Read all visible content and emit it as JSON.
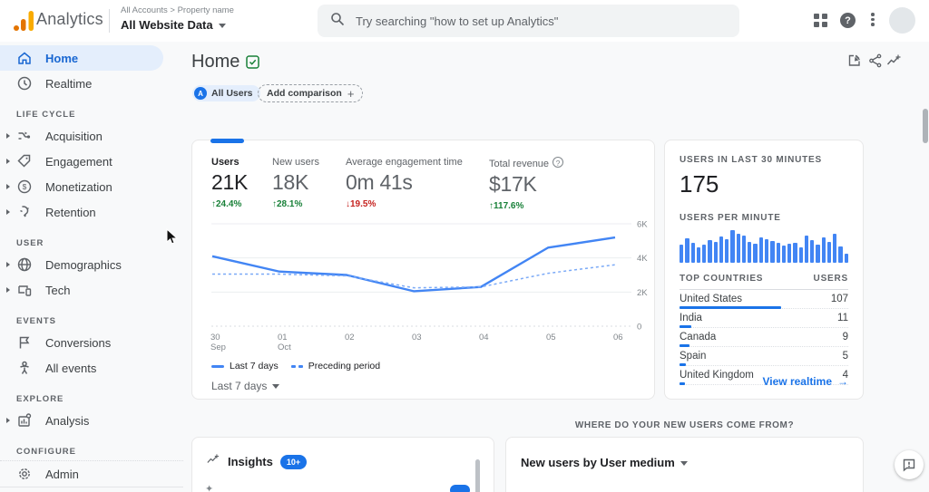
{
  "topbar": {
    "app_name": "Analytics",
    "breadcrumb": "All Accounts > Property name",
    "property_name": "All Website Data",
    "search_placeholder": "Try searching \"how to set up Analytics\"",
    "help_glyph": "?"
  },
  "sidebar": {
    "sections": [
      {
        "items": [
          {
            "label": "Home",
            "icon": "home-icon",
            "active": true
          },
          {
            "label": "Realtime",
            "icon": "clock-icon"
          }
        ]
      },
      {
        "header": "LIFE CYCLE",
        "items": [
          {
            "label": "Acquisition",
            "icon": "acquisition-icon",
            "expandable": true
          },
          {
            "label": "Engagement",
            "icon": "tag-icon",
            "expandable": true
          },
          {
            "label": "Monetization",
            "icon": "dollar-icon",
            "expandable": true
          },
          {
            "label": "Retention",
            "icon": "magnet-icon",
            "expandable": true
          }
        ]
      },
      {
        "header": "USER",
        "items": [
          {
            "label": "Demographics",
            "icon": "globe-icon",
            "expandable": true
          },
          {
            "label": "Tech",
            "icon": "devices-icon",
            "expandable": true
          }
        ]
      },
      {
        "header": "EVENTS",
        "items": [
          {
            "label": "Conversions",
            "icon": "flag-icon"
          },
          {
            "label": "All events",
            "icon": "person-icon"
          }
        ]
      },
      {
        "header": "EXPLORE",
        "items": [
          {
            "label": "Analysis",
            "icon": "analysis-icon",
            "expandable": true
          }
        ]
      },
      {
        "header": "CONFIGURE",
        "items": [
          {
            "label": "Admin",
            "icon": "gear-icon"
          }
        ]
      }
    ]
  },
  "main": {
    "title": "Home",
    "comparison_chip": {
      "badge": "A",
      "label": "All Users"
    },
    "add_comparison_label": "Add comparison",
    "add_comparison_plus": "+",
    "metrics": [
      {
        "label": "Users",
        "value": "21K",
        "delta": "24.4%",
        "trend": "up",
        "active": true
      },
      {
        "label": "New users",
        "value": "18K",
        "delta": "28.1%",
        "trend": "up"
      },
      {
        "label": "Average engagement time",
        "value": "0m 41s",
        "delta": "19.5%",
        "trend": "down"
      },
      {
        "label": "Total revenue",
        "value": "$17K",
        "delta": "117.6%",
        "trend": "up",
        "has_help": true
      }
    ],
    "period_selector": "Last 7 days"
  },
  "chart_data": [
    {
      "type": "line",
      "title": "Users",
      "x": [
        "30 Sep",
        "01 Oct",
        "02",
        "03",
        "04",
        "05",
        "06"
      ],
      "series": [
        {
          "name": "Last 7 days",
          "style": "solid",
          "values": [
            4100,
            3200,
            3000,
            2050,
            2300,
            4600,
            5200
          ]
        },
        {
          "name": "Preceding period",
          "style": "dashed",
          "values": [
            3050,
            3050,
            2950,
            2250,
            2300,
            3100,
            3600
          ]
        }
      ],
      "ylim": [
        0,
        6000
      ],
      "yticks": [
        {
          "v": 0,
          "label": "0"
        },
        {
          "v": 2000,
          "label": "2K"
        },
        {
          "v": 4000,
          "label": "4K"
        },
        {
          "v": 6000,
          "label": "6K"
        }
      ],
      "grid": true,
      "legend_position": "bottom"
    },
    {
      "type": "bar",
      "title": "Users per minute",
      "values": [
        55,
        75,
        62,
        48,
        55,
        70,
        65,
        80,
        72,
        100,
        88,
        82,
        65,
        58,
        78,
        72,
        68,
        62,
        52,
        58,
        62,
        48,
        82,
        70,
        55,
        78,
        65,
        88,
        50,
        28
      ],
      "ylim": [
        0,
        100
      ]
    }
  ],
  "realtime": {
    "title": "USERS IN LAST 30 MINUTES",
    "value": "175",
    "per_minute_label": "USERS PER MINUTE",
    "table_headers": {
      "country": "TOP COUNTRIES",
      "users": "USERS"
    },
    "countries": [
      {
        "name": "United States",
        "users": "107",
        "bar_pct": 60
      },
      {
        "name": "India",
        "users": "11",
        "bar_pct": 7
      },
      {
        "name": "Canada",
        "users": "9",
        "bar_pct": 6
      },
      {
        "name": "Spain",
        "users": "5",
        "bar_pct": 4
      },
      {
        "name": "United Kingdom",
        "users": "4",
        "bar_pct": 3
      }
    ],
    "link_label": "View realtime",
    "link_arrow": "→"
  },
  "bottom": {
    "section_label": "WHERE DO YOUR NEW USERS COME FROM?",
    "insights": {
      "title": "Insights",
      "badge": "10+",
      "sparkle": "✦"
    },
    "new_users_card_title": "New users by User medium"
  },
  "colors": {
    "accent": "#1a73e8",
    "chart_line": "#4285f4",
    "chart_line_secondary": "#7baaf7",
    "positive": "#188038",
    "negative": "#c5221f",
    "selected_pill_bg": "#e4eefc"
  }
}
